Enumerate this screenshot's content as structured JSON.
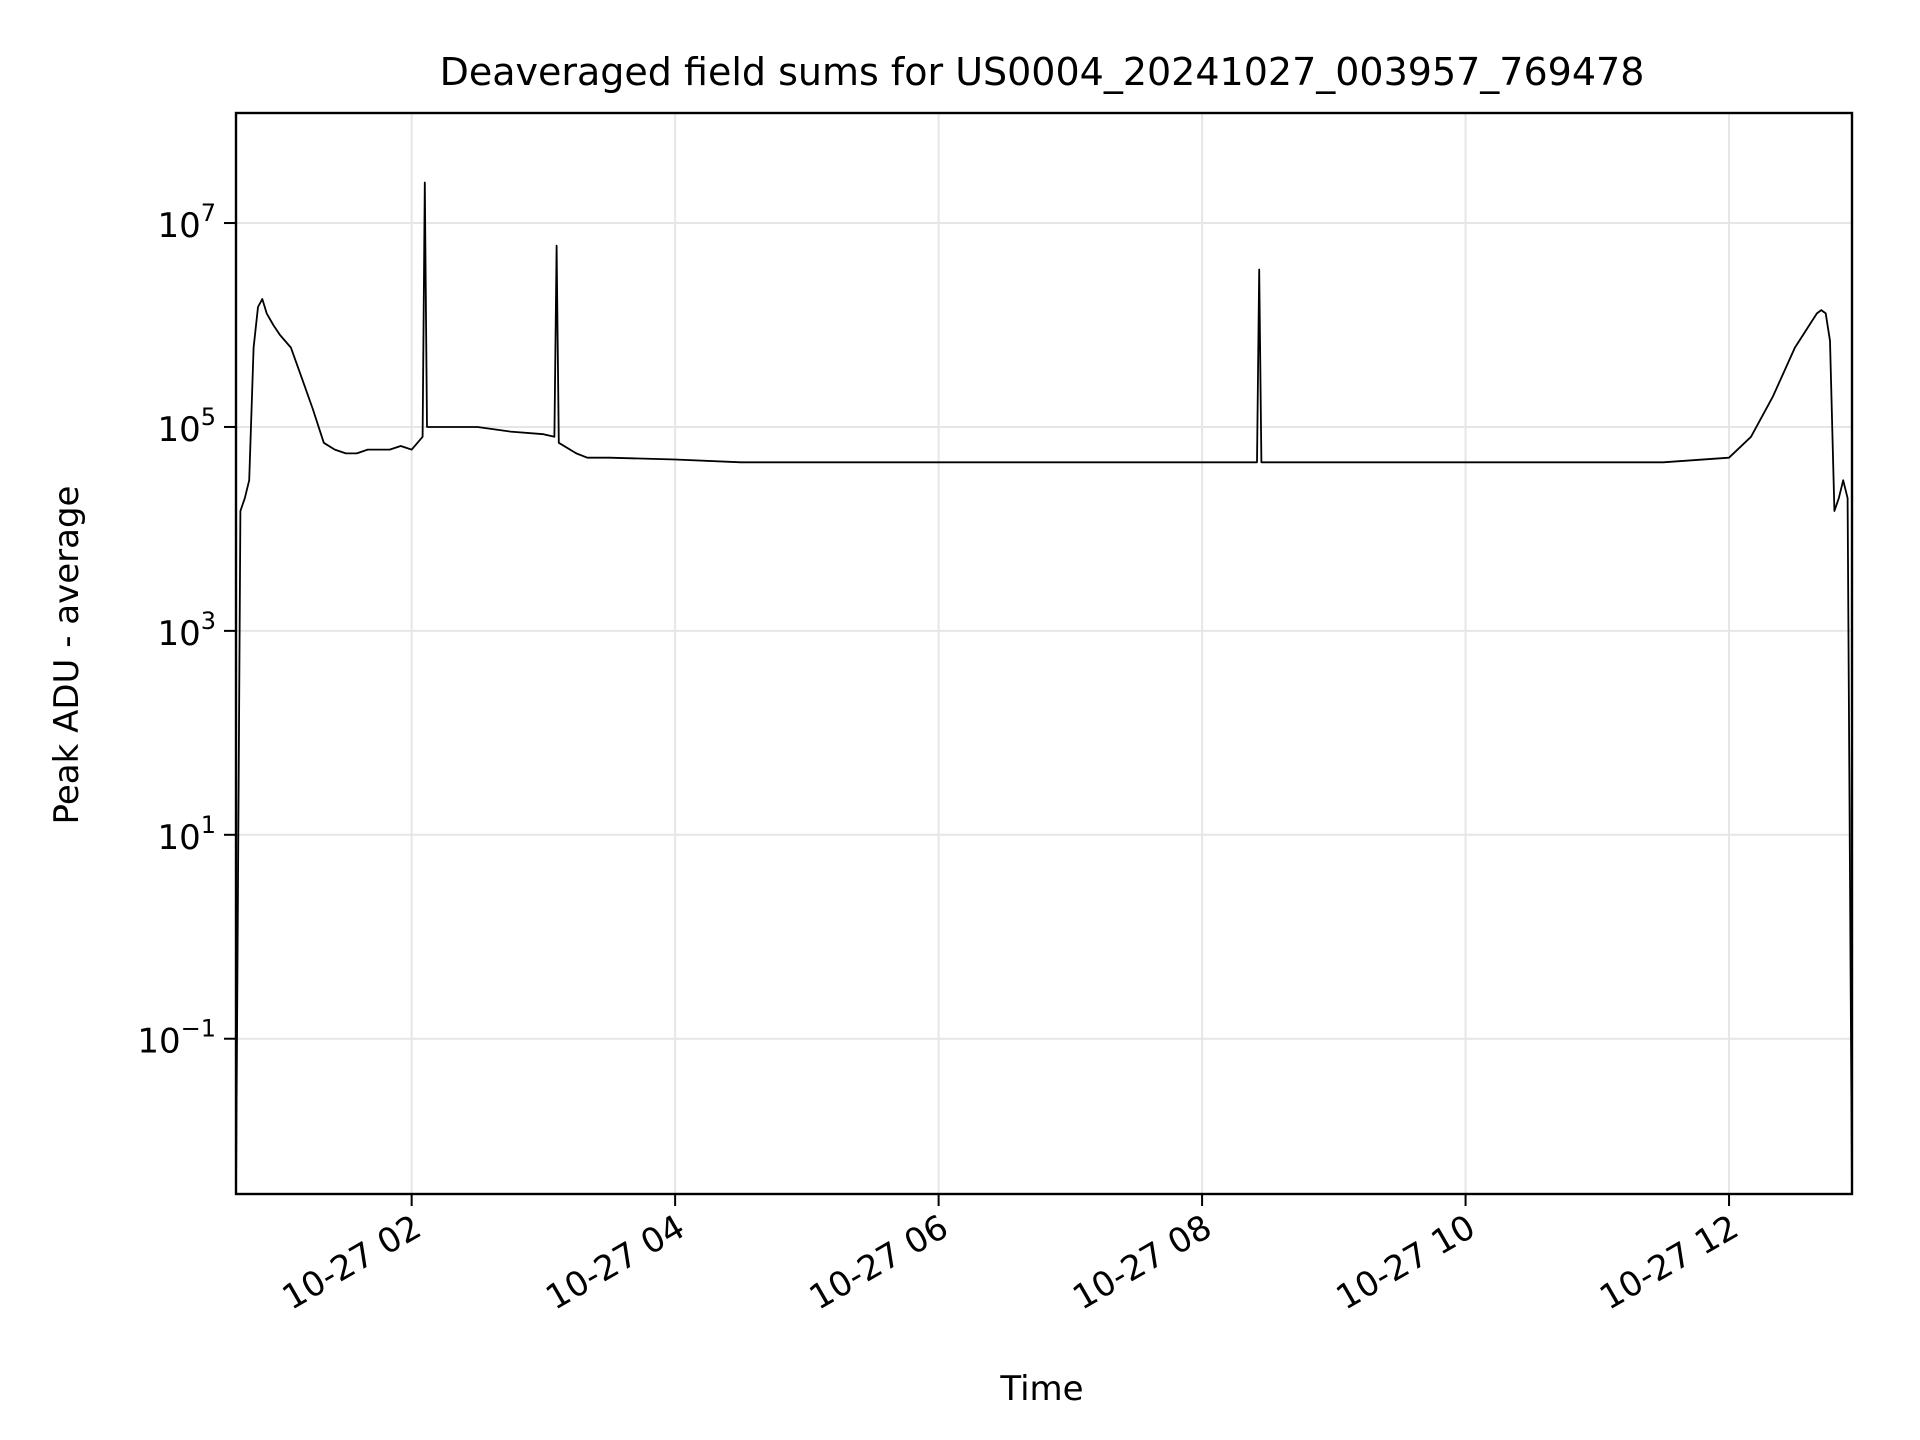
{
  "chart_data": {
    "type": "line",
    "title": "Deaveraged field sums for US0004_20241027_003957_769478",
    "xlabel": "Time",
    "ylabel": "Peak ADU - average",
    "yscale": "log",
    "grid": true,
    "line_color": "#000000",
    "grid_color": "#e6e6e6",
    "xlim": [
      "2024-10-27 00:40",
      "2024-10-27 12:56"
    ],
    "ylim": [
      0.003,
      120000000
    ],
    "x_ticks": [
      {
        "value": "2024-10-27 02:00",
        "label": "10-27 02"
      },
      {
        "value": "2024-10-27 04:00",
        "label": "10-27 04"
      },
      {
        "value": "2024-10-27 06:00",
        "label": "10-27 06"
      },
      {
        "value": "2024-10-27 08:00",
        "label": "10-27 08"
      },
      {
        "value": "2024-10-27 10:00",
        "label": "10-27 10"
      },
      {
        "value": "2024-10-27 12:00",
        "label": "10-27 12"
      }
    ],
    "y_ticks": [
      {
        "value": 0.1,
        "base": "10",
        "exp": "−1"
      },
      {
        "value": 10,
        "base": "10",
        "exp": "1"
      },
      {
        "value": 1000,
        "base": "10",
        "exp": "3"
      },
      {
        "value": 100000,
        "base": "10",
        "exp": "5"
      },
      {
        "value": 10000000,
        "base": "10",
        "exp": "7"
      }
    ],
    "series": [
      {
        "x": [
          "2024-10-27 00:40",
          "2024-10-27 00:42",
          "2024-10-27 00:44",
          "2024-10-27 00:46",
          "2024-10-27 00:48",
          "2024-10-27 00:50",
          "2024-10-27 00:52",
          "2024-10-27 00:54",
          "2024-10-27 00:57",
          "2024-10-27 01:00",
          "2024-10-27 01:05",
          "2024-10-27 01:10",
          "2024-10-27 01:15",
          "2024-10-27 01:20",
          "2024-10-27 01:25",
          "2024-10-27 01:30",
          "2024-10-27 01:35",
          "2024-10-27 01:40",
          "2024-10-27 01:45",
          "2024-10-27 01:50",
          "2024-10-27 01:55",
          "2024-10-27 02:00",
          "2024-10-27 02:05",
          "2024-10-27 02:06",
          "2024-10-27 02:07",
          "2024-10-27 02:15",
          "2024-10-27 02:30",
          "2024-10-27 02:45",
          "2024-10-27 03:00",
          "2024-10-27 03:05",
          "2024-10-27 03:06",
          "2024-10-27 03:07",
          "2024-10-27 03:15",
          "2024-10-27 03:20",
          "2024-10-27 03:30",
          "2024-10-27 04:00",
          "2024-10-27 04:30",
          "2024-10-27 05:00",
          "2024-10-27 05:30",
          "2024-10-27 06:00",
          "2024-10-27 06:30",
          "2024-10-27 07:00",
          "2024-10-27 07:30",
          "2024-10-27 08:00",
          "2024-10-27 08:25",
          "2024-10-27 08:26",
          "2024-10-27 08:27",
          "2024-10-27 09:00",
          "2024-10-27 09:30",
          "2024-10-27 10:00",
          "2024-10-27 10:30",
          "2024-10-27 11:00",
          "2024-10-27 11:30",
          "2024-10-27 12:00",
          "2024-10-27 12:10",
          "2024-10-27 12:20",
          "2024-10-27 12:30",
          "2024-10-27 12:40",
          "2024-10-27 12:42",
          "2024-10-27 12:44",
          "2024-10-27 12:46",
          "2024-10-27 12:48",
          "2024-10-27 12:50",
          "2024-10-27 12:52",
          "2024-10-27 12:54",
          "2024-10-27 12:56"
        ],
        "y": [
          0.003,
          15000,
          20000,
          30000,
          600000,
          1500000,
          1800000,
          1300000,
          1000000,
          800000,
          600000,
          300000,
          150000,
          70000,
          60000,
          55000,
          55000,
          60000,
          60000,
          60000,
          65000,
          60000,
          80000,
          25000000,
          100000,
          100000,
          100000,
          90000,
          85000,
          80000,
          6000000,
          70000,
          55000,
          50000,
          50000,
          48000,
          45000,
          45000,
          45000,
          45000,
          45000,
          45000,
          45000,
          45000,
          45000,
          3500000,
          45000,
          45000,
          45000,
          45000,
          45000,
          45000,
          45000,
          50000,
          80000,
          200000,
          600000,
          1300000,
          1400000,
          1300000,
          700000,
          15000,
          20000,
          30000,
          20000,
          0.003
        ]
      }
    ]
  }
}
